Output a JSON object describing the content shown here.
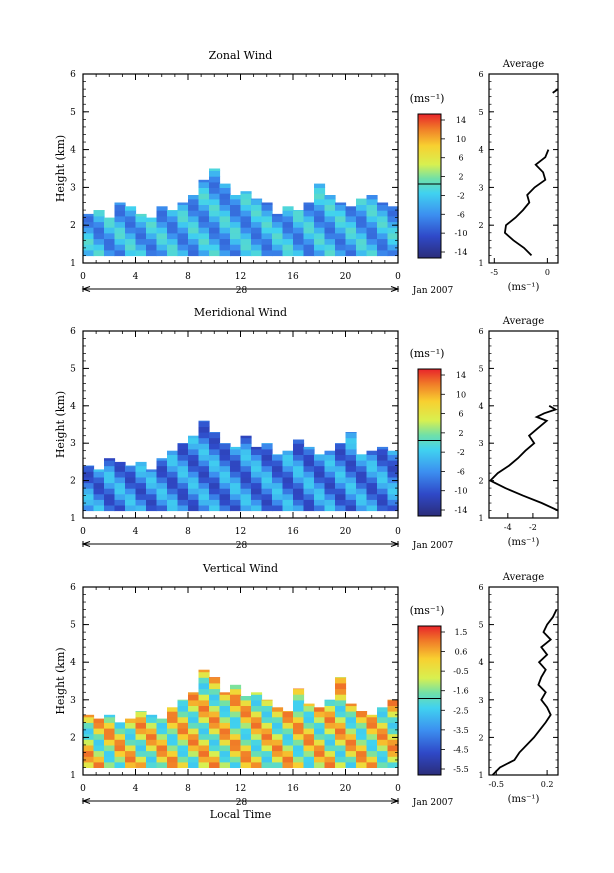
{
  "figure": {
    "date_label": "Jan 2007",
    "xlabel": "Local Time",
    "avg_title": "Average"
  },
  "chart_data": [
    {
      "type": "heatmap",
      "title": "Zonal Wind",
      "ylabel": "Height (km)",
      "xlabel": "",
      "day_label": "28",
      "x_ticks": [
        "0",
        "4",
        "8",
        "12",
        "16",
        "20",
        "0"
      ],
      "xlim": [
        0,
        24
      ],
      "y_ticks": [
        "1",
        "2",
        "3",
        "4",
        "5",
        "6"
      ],
      "ylim": [
        1,
        6
      ],
      "colorbar_label": "(ms⁻¹)",
      "colorbar_ticks": [
        "14",
        "10",
        "6",
        "2",
        "-2",
        "-6",
        "-10",
        "-14"
      ],
      "colorbar_range": [
        -16,
        16
      ],
      "height_top_km": [
        2.3,
        2.4,
        2.2,
        2.6,
        2.5,
        2.3,
        2.2,
        2.5,
        2.4,
        2.6,
        2.8,
        3.2,
        3.5,
        3.1,
        2.8,
        2.9,
        2.7,
        2.6,
        2.3,
        2.5,
        2.4,
        2.6,
        3.1,
        2.8,
        2.6,
        2.5,
        2.7,
        2.8,
        2.6,
        2.5
      ],
      "value_range": [
        -9,
        0
      ],
      "average_profile": {
        "xlabel": "(ms⁻¹)",
        "x_ticks": [
          "-5",
          "0"
        ],
        "xlim": [
          -5.5,
          1
        ],
        "y": [
          1.2,
          1.4,
          1.6,
          1.8,
          2.0,
          2.2,
          2.4,
          2.6,
          2.8,
          3.0,
          3.2,
          3.4,
          3.6,
          3.8,
          4.0
        ],
        "x": [
          -1.5,
          -2.2,
          -3.2,
          -4.0,
          -3.9,
          -3.0,
          -2.3,
          -1.7,
          -1.9,
          -1.2,
          -0.2,
          -0.4,
          -1.1,
          -0.2,
          0.1
        ],
        "y2": [
          5.5,
          5.6
        ],
        "x2": [
          0.5,
          1.0
        ]
      }
    },
    {
      "type": "heatmap",
      "title": "Meridional Wind",
      "ylabel": "Height (km)",
      "xlabel": "",
      "day_label": "28",
      "x_ticks": [
        "0",
        "4",
        "8",
        "12",
        "16",
        "20",
        "0"
      ],
      "xlim": [
        0,
        24
      ],
      "y_ticks": [
        "1",
        "2",
        "3",
        "4",
        "5",
        "6"
      ],
      "ylim": [
        1,
        6
      ],
      "colorbar_label": "(ms⁻¹)",
      "colorbar_ticks": [
        "14",
        "10",
        "6",
        "2",
        "-2",
        "-6",
        "-10",
        "-14"
      ],
      "colorbar_range": [
        -16,
        16
      ],
      "height_top_km": [
        2.4,
        2.3,
        2.6,
        2.5,
        2.4,
        2.5,
        2.3,
        2.6,
        2.8,
        3.0,
        3.2,
        3.6,
        3.3,
        3.0,
        2.9,
        3.2,
        2.9,
        3.0,
        2.7,
        2.8,
        3.1,
        2.9,
        2.7,
        2.8,
        3.0,
        3.3,
        2.7,
        2.8,
        2.9,
        2.8
      ],
      "value_range": [
        -12,
        -2
      ],
      "average_profile": {
        "xlabel": "(ms⁻¹)",
        "x_ticks": [
          "-4",
          "-2"
        ],
        "xlim": [
          -5.5,
          0
        ],
        "y": [
          1.2,
          1.4,
          1.6,
          1.8,
          2.0,
          2.2,
          2.4,
          2.6,
          2.8,
          3.0,
          3.2,
          3.4,
          3.6,
          3.7,
          3.8,
          3.9,
          4.0
        ],
        "x": [
          0,
          -1.3,
          -2.8,
          -4.2,
          -5.4,
          -4.8,
          -3.9,
          -3.2,
          -2.6,
          -1.9,
          -2.3,
          -1.6,
          -0.9,
          -1.7,
          -1.1,
          -0.2,
          -0.7
        ]
      }
    },
    {
      "type": "heatmap",
      "title": "Vertical Wind",
      "ylabel": "Height (km)",
      "xlabel": "Local Time",
      "day_label": "28",
      "x_ticks": [
        "0",
        "4",
        "8",
        "12",
        "16",
        "20",
        "0"
      ],
      "xlim": [
        0,
        24
      ],
      "y_ticks": [
        "1",
        "2",
        "3",
        "4",
        "5",
        "6"
      ],
      "ylim": [
        1,
        6
      ],
      "colorbar_label": "(ms⁻¹)",
      "colorbar_ticks": [
        "1.5",
        "0.6",
        "-0.5",
        "-1.6",
        "-2.5",
        "-3.5",
        "-4.5",
        "-5.5"
      ],
      "colorbar_range": [
        -6,
        2
      ],
      "height_top_km": [
        2.6,
        2.5,
        2.6,
        2.4,
        2.5,
        2.7,
        2.6,
        2.5,
        2.8,
        3.0,
        3.2,
        3.8,
        3.6,
        3.2,
        3.4,
        3.1,
        3.2,
        3.0,
        2.8,
        2.7,
        3.3,
        2.9,
        2.8,
        3.0,
        3.6,
        2.9,
        2.7,
        2.6,
        2.8,
        3.0
      ],
      "value_range": [
        -2.6,
        1.3
      ],
      "average_profile": {
        "xlabel": "(ms⁻¹)",
        "x_ticks": [
          "-0.5",
          "0.2"
        ],
        "xlim": [
          -0.6,
          0.35
        ],
        "y": [
          1.0,
          1.2,
          1.4,
          1.6,
          1.8,
          2.0,
          2.2,
          2.4,
          2.6,
          2.8,
          3.0,
          3.2,
          3.4,
          3.6,
          3.8,
          4.0,
          4.2,
          4.4,
          4.6,
          4.8,
          5.0,
          5.2,
          5.4
        ],
        "x": [
          -0.55,
          -0.45,
          -0.25,
          -0.18,
          -0.08,
          0.02,
          0.1,
          0.18,
          0.25,
          0.2,
          0.12,
          0.18,
          0.08,
          0.12,
          0.18,
          0.09,
          0.2,
          0.12,
          0.25,
          0.15,
          0.2,
          0.28,
          0.33
        ]
      }
    }
  ]
}
